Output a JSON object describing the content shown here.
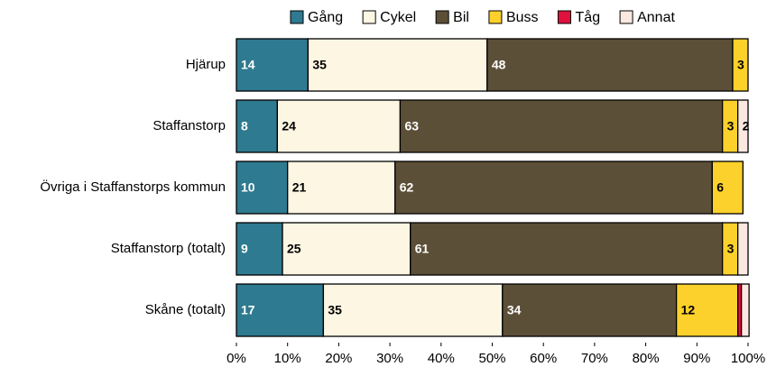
{
  "chart_data": {
    "type": "stacked-barh",
    "categories": [
      "Hjärup",
      "Staffanstorp",
      "Övriga i Staffanstorps kommun",
      "Staffanstorp (totalt)",
      "Skåne (totalt)"
    ],
    "series": [
      {
        "name": "Gång",
        "color": "#2e7a90",
        "label_color": "#ffffff",
        "values": [
          14,
          8,
          10,
          9,
          17
        ],
        "value_labels": [
          "14",
          "8",
          "10",
          "9",
          "17"
        ]
      },
      {
        "name": "Cykel",
        "color": "#fdf6e3",
        "label_color": "#000000",
        "values": [
          35,
          24,
          21,
          25,
          35
        ],
        "value_labels": [
          "35",
          "24",
          "21",
          "25",
          "35"
        ]
      },
      {
        "name": "Bil",
        "color": "#5c4f37",
        "label_color": "#ffffff",
        "values": [
          48,
          63,
          62,
          61,
          34
        ],
        "value_labels": [
          "48",
          "63",
          "62",
          "61",
          "34"
        ]
      },
      {
        "name": "Buss",
        "color": "#fdd12b",
        "label_color": "#000000",
        "values": [
          3,
          3,
          6,
          3,
          12
        ],
        "value_labels": [
          "3",
          "3",
          "6",
          "3",
          "12"
        ]
      },
      {
        "name": "Tåg",
        "color": "#e0103f",
        "label_color": "#000000",
        "values": [
          0,
          0,
          0,
          0,
          0.7
        ],
        "value_labels": [
          null,
          null,
          null,
          null,
          null
        ]
      },
      {
        "name": "Annat",
        "color": "#fbe8e0",
        "label_color": "#000000",
        "values": [
          0,
          2,
          0,
          2,
          1.5
        ],
        "value_labels": [
          null,
          "2",
          null,
          null,
          null
        ]
      }
    ],
    "xlim": [
      0,
      100
    ],
    "xticks": [
      {
        "value": 0,
        "label": "0%"
      },
      {
        "value": 10,
        "label": "10%"
      },
      {
        "value": 20,
        "label": "20%"
      },
      {
        "value": 30,
        "label": "30%"
      },
      {
        "value": 40,
        "label": "40%"
      },
      {
        "value": 50,
        "label": "50%"
      },
      {
        "value": 60,
        "label": "60%"
      },
      {
        "value": 70,
        "label": "70%"
      },
      {
        "value": 80,
        "label": "80%"
      },
      {
        "value": 90,
        "label": "90%"
      },
      {
        "value": 100,
        "label": "100%"
      }
    ],
    "legend": "top"
  }
}
